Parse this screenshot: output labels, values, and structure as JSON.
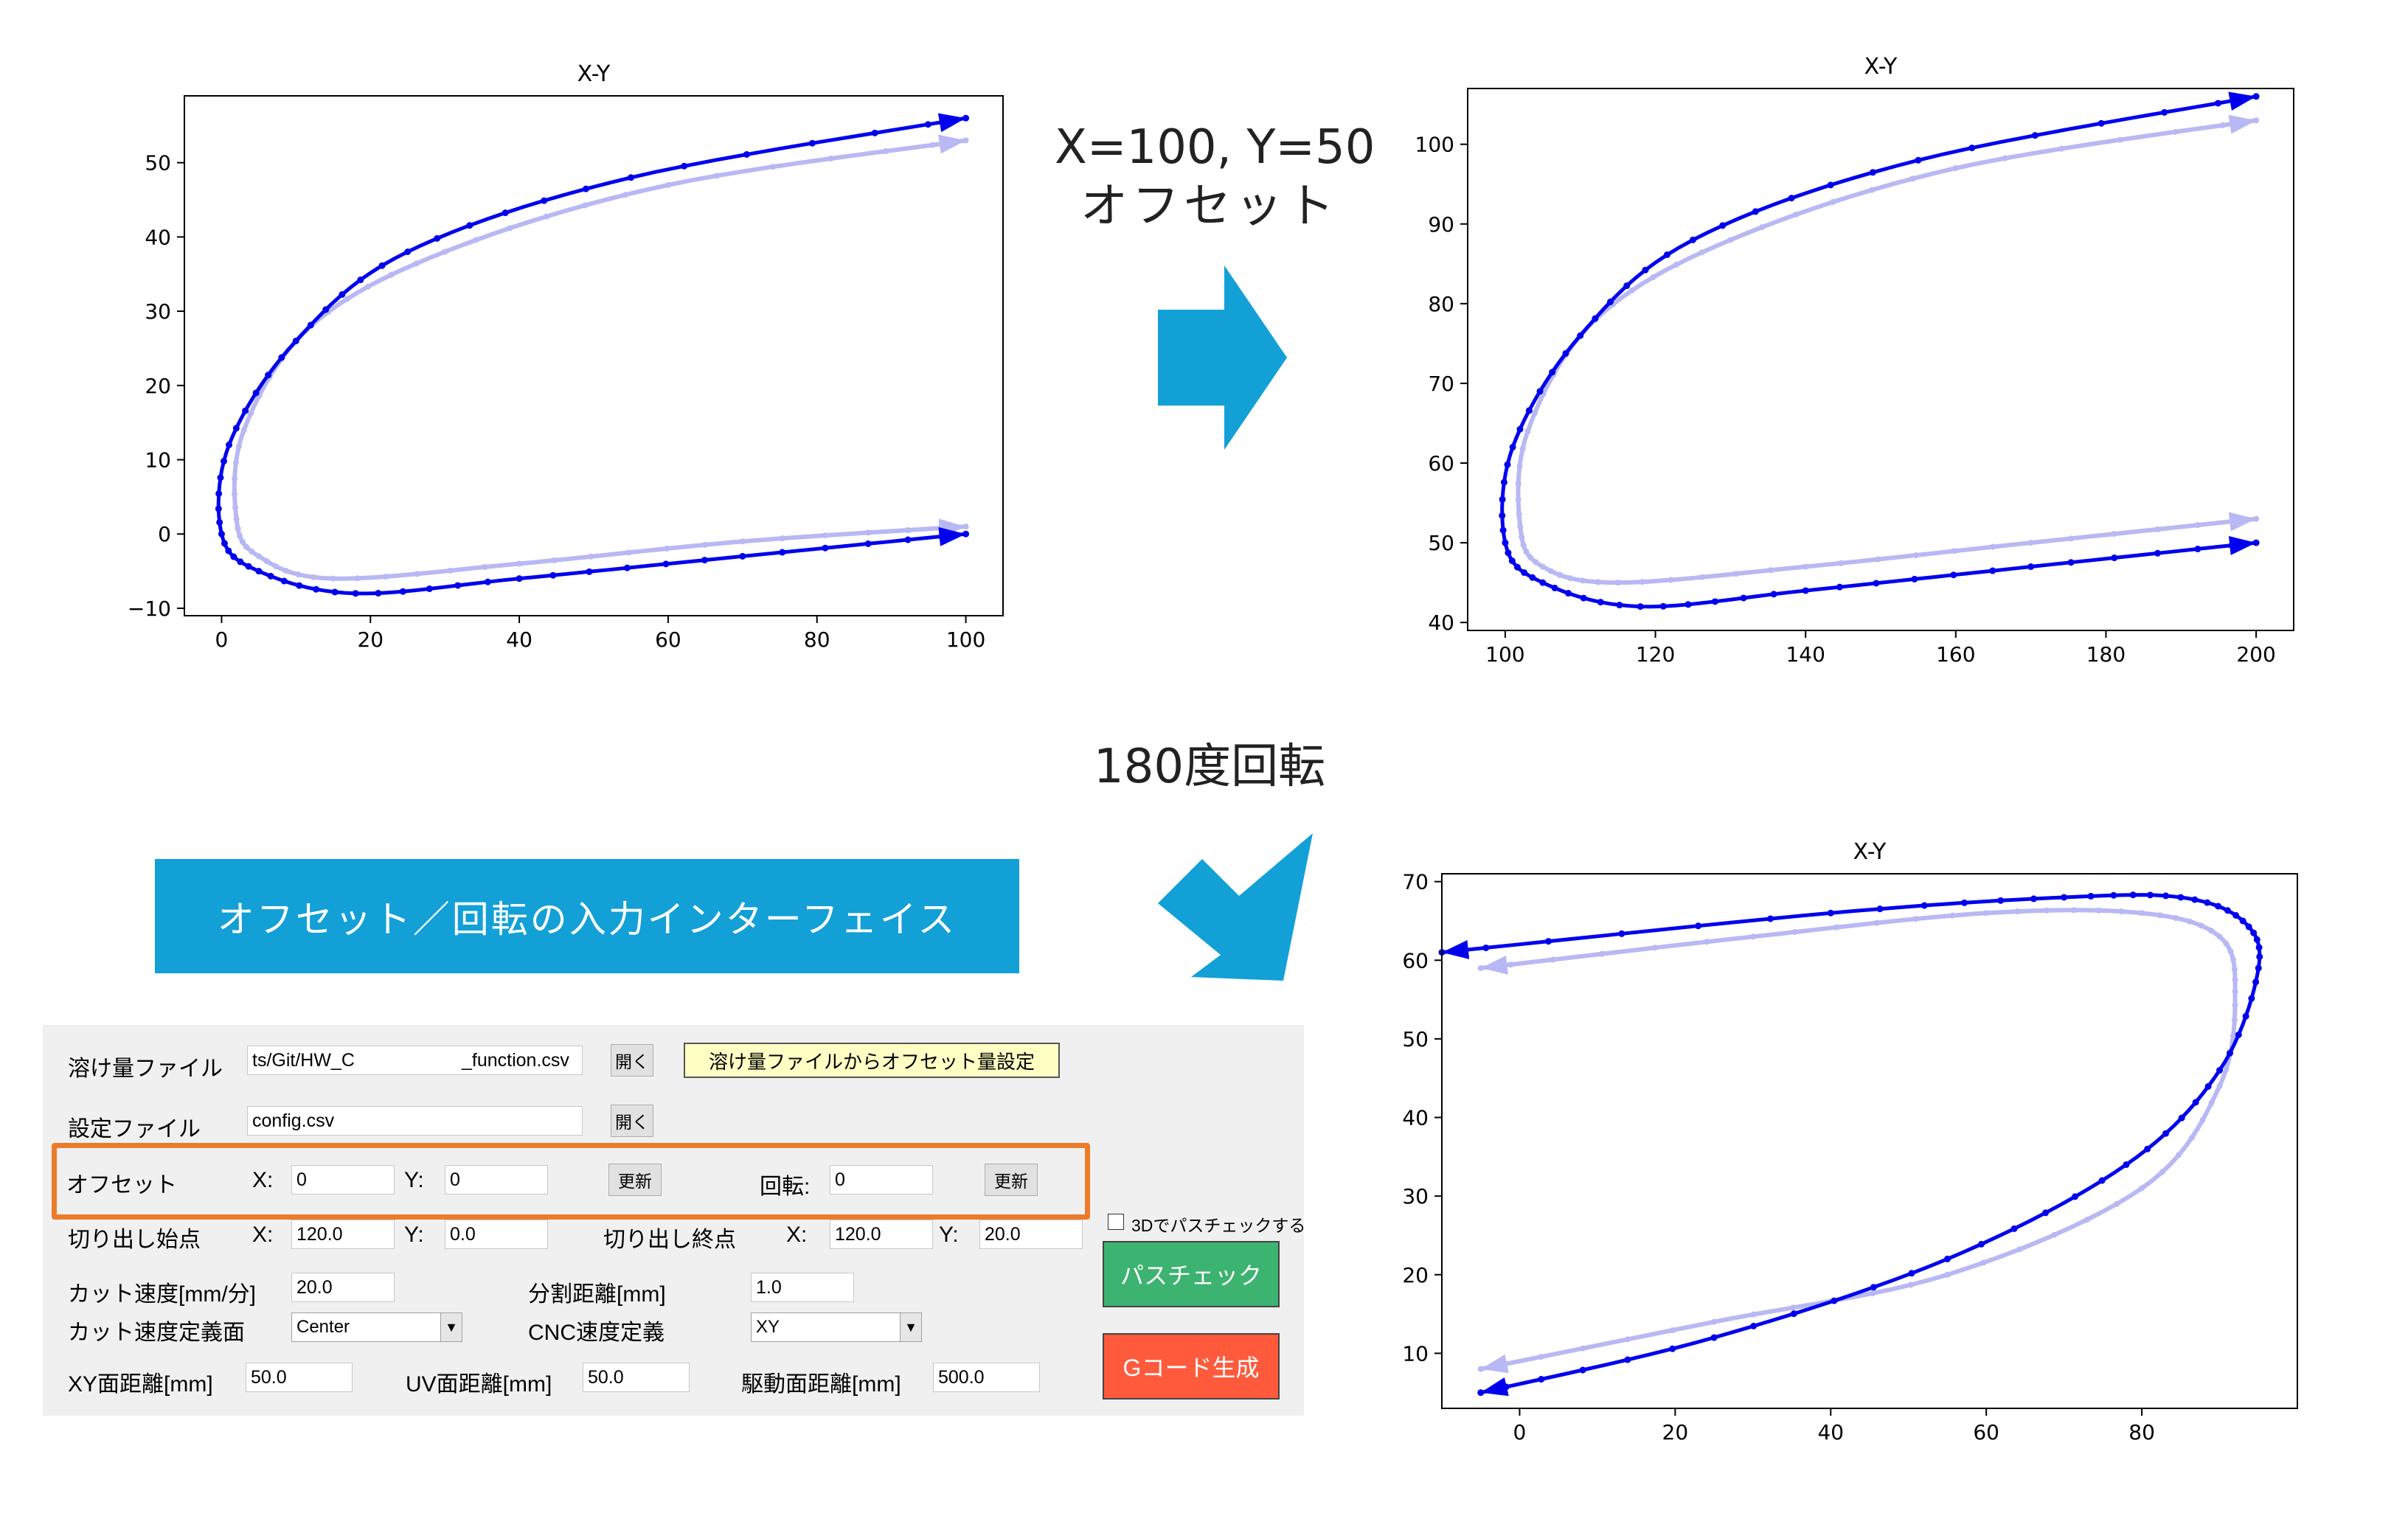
{
  "captions": {
    "offset_line1": "X=100, Y=50",
    "offset_line2": "オフセット",
    "rotate": "180度回転"
  },
  "callout_text": "オフセット／回転の入力インターフェイス",
  "colors": {
    "path": "#0000ee",
    "path_ghost": "#b8b8f4",
    "arrow": "#12a0d7",
    "highlight": "#ec7b2a",
    "pathcheck": "#3cb371",
    "gcode": "#ff5a3c",
    "callout": "#12a0d7"
  },
  "chart_data": [
    {
      "type": "line",
      "title": "X-Y",
      "xlim": [
        -5,
        105
      ],
      "ylim": [
        -11,
        59
      ],
      "xticks": [
        0,
        20,
        40,
        60,
        80,
        100
      ],
      "yticks": [
        -10,
        0,
        10,
        20,
        30,
        40,
        50
      ],
      "series": [
        {
          "role": "original-faint",
          "x": [
            100,
            70,
            40,
            15,
            5,
            2,
            3,
            12,
            30,
            60,
            100
          ],
          "y": [
            1,
            -1,
            -4,
            -6,
            -3,
            2,
            14,
            28,
            38,
            47,
            53
          ]
        },
        {
          "role": "transformed",
          "x": [
            100,
            70,
            40,
            18,
            5,
            0,
            1,
            10,
            25,
            55,
            100
          ],
          "y": [
            0,
            -3,
            -6,
            -8,
            -5,
            0,
            12,
            26,
            38,
            48,
            56
          ]
        }
      ]
    },
    {
      "type": "line",
      "title": "X-Y",
      "xlim": [
        95,
        205
      ],
      "ylim": [
        39,
        107
      ],
      "xticks": [
        100,
        120,
        140,
        160,
        180,
        200
      ],
      "yticks": [
        40,
        50,
        60,
        70,
        80,
        90,
        100
      ],
      "series": [
        {
          "role": "original-faint",
          "x": [
            200,
            170,
            140,
            115,
            105,
            102,
            103,
            112,
            130,
            160,
            200
          ],
          "y": [
            53,
            50,
            47,
            45,
            47,
            52,
            64,
            78,
            88,
            97,
            103
          ]
        },
        {
          "role": "transformed",
          "x": [
            200,
            170,
            140,
            118,
            105,
            100,
            101,
            110,
            125,
            155,
            200
          ],
          "y": [
            50,
            47,
            44,
            42,
            45,
            50,
            62,
            76,
            88,
            98,
            106
          ]
        }
      ]
    },
    {
      "type": "line",
      "title": "X-Y",
      "xlim": [
        -10,
        100
      ],
      "ylim": [
        3,
        71
      ],
      "xticks": [
        0,
        20,
        40,
        60,
        80
      ],
      "yticks": [
        10,
        20,
        30,
        40,
        50,
        60,
        70
      ],
      "series": [
        {
          "role": "original-faint",
          "x": [
            -5,
            25,
            55,
            80,
            90,
            92,
            90,
            80,
            60,
            30,
            -5
          ],
          "y": [
            8,
            14,
            20,
            31,
            44,
            56,
            63,
            66,
            66,
            63,
            59
          ]
        },
        {
          "role": "transformed",
          "x": [
            -5,
            25,
            55,
            78,
            90,
            95,
            93,
            85,
            70,
            40,
            -10
          ],
          "y": [
            5,
            12,
            22,
            34,
            46,
            59,
            65,
            68,
            68,
            66,
            61
          ]
        }
      ]
    }
  ],
  "ui": {
    "row1": {
      "label": "溶け量ファイル",
      "path_left": "ts/Git/HW_C",
      "path_right": "_function.csv",
      "open": "開く",
      "set_offset": "溶け量ファイルからオフセット量設定"
    },
    "row2": {
      "label": "設定ファイル",
      "path": "config.csv",
      "open": "開く"
    },
    "row3": {
      "label": "オフセット",
      "x_label": "X:",
      "x_value": "0",
      "y_label": "Y:",
      "y_value": "0",
      "update": "更新",
      "rot_label": "回転:",
      "rot_value": "0",
      "update2": "更新"
    },
    "row4": {
      "label": "切り出し始点",
      "x_label": "X:",
      "x_value": "120.0",
      "y_label": "Y:",
      "y_value": "0.0",
      "end_label": "切り出し終点",
      "ex_label": "X:",
      "ex_value": "120.0",
      "ey_label": "Y:",
      "ey_value": "20.0"
    },
    "check3d": "3Dでパスチェックする",
    "row5": {
      "speed_label": "カット速度[mm/分]",
      "speed_value": "20.0",
      "div_label": "分割距離[mm]",
      "div_value": "1.0"
    },
    "row6": {
      "plane_label": "カット速度定義面",
      "plane_value": "Center",
      "cnc_label": "CNC速度定義",
      "cnc_value": "XY"
    },
    "row7": {
      "xy_label": "XY面距離[mm]",
      "xy_value": "50.0",
      "uv_label": "UV面距離[mm]",
      "uv_value": "50.0",
      "drv_label": "駆動面距離[mm]",
      "drv_value": "500.0"
    },
    "pathcheck": "パスチェック",
    "gcode": "Gコード生成"
  }
}
